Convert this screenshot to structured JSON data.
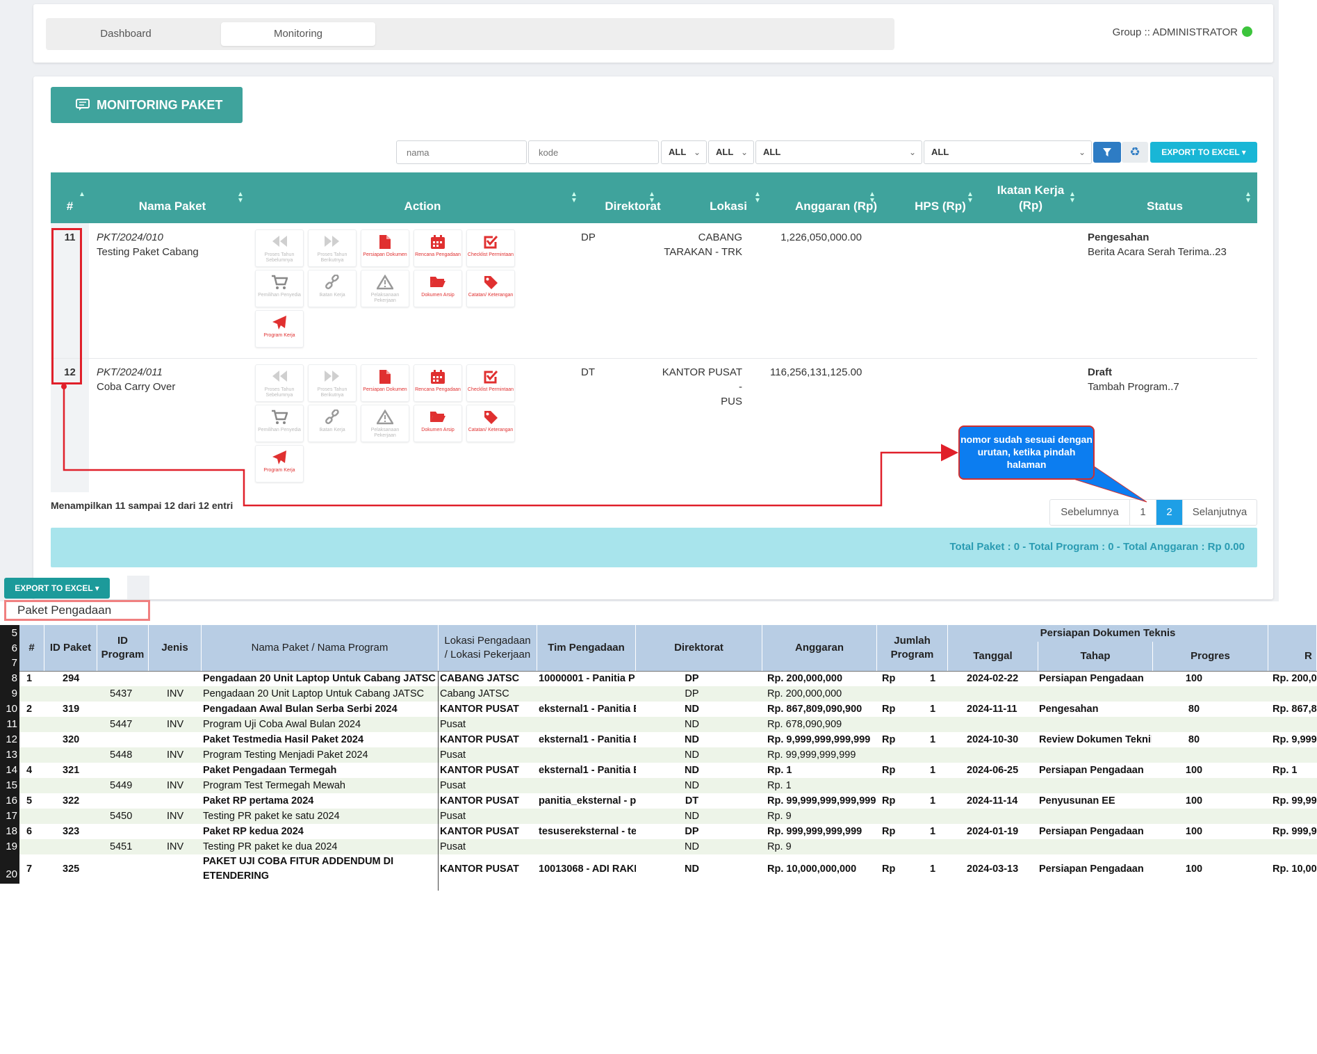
{
  "nav": {
    "tabs": [
      {
        "label": "Dashboard"
      },
      {
        "label": "Monitoring"
      }
    ],
    "group_label": "Group :: ADMINISTRATOR"
  },
  "title": "MONITORING PAKET",
  "filters": {
    "nama_placeholder": "nama",
    "kode_placeholder": "kode",
    "selects": [
      "ALL",
      "ALL",
      "ALL",
      "ALL"
    ],
    "export_label": "EXPORT TO EXCEL"
  },
  "table": {
    "headers": [
      "#",
      "Nama Paket",
      "Action",
      "Direktorat",
      "Lokasi",
      "Anggaran (Rp)",
      "HPS (Rp)",
      "Ikatan Kerja (Rp)",
      "Status"
    ],
    "action_labels": [
      "Proses Tahun Sebelumnya",
      "Proses Tahun Berikutnya",
      "Persiapan Dokumen",
      "Rencana Pengadaan",
      "Checklist Permintaan",
      "Pemilihan Penyedia",
      "Ikatan Kerja",
      "Pelaksanaan Pekerjaan",
      "Dokumen Arsip",
      "Catatan/ Keterangan",
      "Program Kerja"
    ],
    "rows": [
      {
        "no": "11",
        "kode": "PKT/2024/010",
        "nama": "Testing Paket Cabang",
        "direktorat": "DP",
        "lokasi1": "CABANG",
        "lokasi2": "TARAKAN - TRK",
        "anggaran": "1,226,050,000.00",
        "status": "Pengesahan",
        "status_detail": "Berita Acara Serah Terima..23"
      },
      {
        "no": "12",
        "kode": "PKT/2024/011",
        "nama": "Coba Carry Over",
        "direktorat": "DT",
        "lokasi1": "KANTOR PUSAT -",
        "lokasi2": "PUS",
        "anggaran": "116,256,131,125.00",
        "status": "Draft",
        "status_detail": "Tambah Program..7"
      }
    ]
  },
  "entries_text": "Menampilkan 11 sampai 12 dari 12 entri",
  "pagination": {
    "prev": "Sebelumnya",
    "pages": [
      "1",
      "2"
    ],
    "active": "2",
    "next": "Selanjutnya"
  },
  "totals_text": "Total Paket : 0 - Total Program : 0 - Total Anggaran : Rp 0.00",
  "callout_text": "nomor sudah sesuai dengan urutan, ketika pindah halaman",
  "sheet": {
    "export_label": "EXPORT TO EXCEL",
    "title": "Paket Pengadaan",
    "row_numbers": [
      "5",
      "6",
      "7",
      "8",
      "9",
      "10",
      "11",
      "12",
      "13",
      "14",
      "15",
      "16",
      "17",
      "18",
      "19",
      "20"
    ],
    "headers": {
      "no": "#",
      "id_paket": "ID Paket",
      "id_program": "ID Program",
      "jenis": "Jenis",
      "nama": "Nama Paket / Nama Program",
      "lokasi": "Lokasi Pengadaan / Lokasi Pekerjaan",
      "tim": "Tim Pengadaan",
      "direktorat": "Direktorat",
      "anggaran": "Anggaran",
      "jumlah": "Jumlah Program",
      "group": "Persiapan Dokumen Teknis",
      "tanggal": "Tanggal",
      "tahap": "Tahap",
      "progres": "Progres"
    },
    "rows": [
      {
        "rn": "8",
        "bold": true,
        "no": "1",
        "idp": "294",
        "idpr": "",
        "jenis": "",
        "nama": "Pengadaan 20 Unit Laptop Untuk Cabang JATSC",
        "lokasi": "CABANG JATSC",
        "tim": "10000001 - Panitia P",
        "dir": "DP",
        "ang": "Rp. 200,000,000",
        "rp": "Rp",
        "jml": "1",
        "tgl": "2024-02-22",
        "tahap": "Persiapan Pengadaan",
        "prog": "100",
        "last": "Rp. 200,0"
      },
      {
        "rn": "9",
        "bold": false,
        "no": "",
        "idp": "",
        "idpr": "5437",
        "jenis": "INV",
        "nama": "Pengadaan 20 Unit Laptop Untuk Cabang JATSC",
        "lokasi": "Cabang JATSC",
        "tim": "",
        "dir": "DP",
        "ang": "Rp. 200,000,000",
        "rp": "",
        "jml": "",
        "tgl": "",
        "tahap": "",
        "prog": "",
        "last": ""
      },
      {
        "rn": "10",
        "bold": true,
        "no": "2",
        "idp": "319",
        "idpr": "",
        "jenis": "",
        "nama": "Pengadaan Awal Bulan Serba Serbi 2024",
        "lokasi": "KANTOR PUSAT",
        "tim": "eksternal1 - Panitia E",
        "dir": "ND",
        "ang": "Rp. 867,809,090,900",
        "rp": "Rp",
        "jml": "1",
        "tgl": "2024-11-11",
        "tahap": "Pengesahan",
        "prog": "80",
        "last": "Rp. 867,8"
      },
      {
        "rn": "11",
        "bold": false,
        "no": "",
        "idp": "",
        "idpr": "5447",
        "jenis": "INV",
        "nama": "Program Uji Coba Awal Bulan 2024",
        "lokasi": "Pusat",
        "tim": "",
        "dir": "ND",
        "ang": "Rp. 678,090,909",
        "rp": "",
        "jml": "",
        "tgl": "",
        "tahap": "",
        "prog": "",
        "last": ""
      },
      {
        "rn": "12",
        "bold": true,
        "no": "",
        "idp": "320",
        "idpr": "",
        "jenis": "",
        "nama": "Paket Testmedia Hasil Paket 2024",
        "lokasi": "KANTOR PUSAT",
        "tim": "eksternal1 - Panitia E",
        "dir": "ND",
        "ang": "Rp. 9,999,999,999,999",
        "rp": "Rp",
        "jml": "1",
        "tgl": "2024-10-30",
        "tahap": "Review Dokumen Teknil",
        "prog": "80",
        "last": "Rp. 9,999"
      },
      {
        "rn": "13",
        "bold": false,
        "no": "",
        "idp": "",
        "idpr": "5448",
        "jenis": "INV",
        "nama": "Program Testing Menjadi Paket 2024",
        "lokasi": "Pusat",
        "tim": "",
        "dir": "ND",
        "ang": "Rp. 99,999,999,999",
        "rp": "",
        "jml": "",
        "tgl": "",
        "tahap": "",
        "prog": "",
        "last": ""
      },
      {
        "rn": "14",
        "bold": true,
        "no": "4",
        "idp": "321",
        "idpr": "",
        "jenis": "",
        "nama": "Paket Pengadaan Termegah",
        "lokasi": "KANTOR PUSAT",
        "tim": "eksternal1 - Panitia E",
        "dir": "ND",
        "ang": "Rp. 1",
        "rp": "Rp",
        "jml": "1",
        "tgl": "2024-06-25",
        "tahap": "Persiapan Pengadaan",
        "prog": "100",
        "last": "Rp. 1"
      },
      {
        "rn": "15",
        "bold": false,
        "no": "",
        "idp": "",
        "idpr": "5449",
        "jenis": "INV",
        "nama": "Program Test Termegah Mewah",
        "lokasi": "Pusat",
        "tim": "",
        "dir": "ND",
        "ang": "Rp. 1",
        "rp": "",
        "jml": "",
        "tgl": "",
        "tahap": "",
        "prog": "",
        "last": ""
      },
      {
        "rn": "16",
        "bold": true,
        "no": "5",
        "idp": "322",
        "idpr": "",
        "jenis": "",
        "nama": "Paket RP pertama 2024",
        "lokasi": "KANTOR PUSAT",
        "tim": "panitia_eksternal - p",
        "dir": "DT",
        "ang": "Rp. 99,999,999,999,999",
        "rp": "Rp",
        "jml": "1",
        "tgl": "2024-11-14",
        "tahap": "Penyusunan EE",
        "prog": "100",
        "last": "Rp. 99,99"
      },
      {
        "rn": "17",
        "bold": false,
        "no": "",
        "idp": "",
        "idpr": "5450",
        "jenis": "INV",
        "nama": "Testing PR paket ke satu 2024",
        "lokasi": "Pusat",
        "tim": "",
        "dir": "ND",
        "ang": "Rp. 9",
        "rp": "",
        "jml": "",
        "tgl": "",
        "tahap": "",
        "prog": "",
        "last": ""
      },
      {
        "rn": "18",
        "bold": true,
        "no": "6",
        "idp": "323",
        "idpr": "",
        "jenis": "",
        "nama": "Paket RP kedua 2024",
        "lokasi": "KANTOR PUSAT",
        "tim": "tesusereksternal - te",
        "dir": "DP",
        "ang": "Rp. 999,999,999,999",
        "rp": "Rp",
        "jml": "1",
        "tgl": "2024-01-19",
        "tahap": "Persiapan Pengadaan",
        "prog": "100",
        "last": "Rp. 999,9"
      },
      {
        "rn": "19",
        "bold": false,
        "no": "",
        "idp": "",
        "idpr": "5451",
        "jenis": "INV",
        "nama": "Testing PR paket ke dua 2024",
        "lokasi": "Pusat",
        "tim": "",
        "dir": "ND",
        "ang": "Rp. 9",
        "rp": "",
        "jml": "",
        "tgl": "",
        "tahap": "",
        "prog": "",
        "last": ""
      }
    ],
    "last_row": {
      "rn": "20",
      "no": "7",
      "idp": "325",
      "nama1": "PAKET UJI COBA FITUR ADDENDUM DI",
      "nama2": "ETENDERING",
      "lokasi": "KANTOR PUSAT",
      "tim": "10013068 - ADI RAKH",
      "dir": "ND",
      "ang": "Rp. 10,000,000,000",
      "rp": "Rp",
      "jml": "1",
      "tgl": "2024-03-13",
      "tahap": "Persiapan Pengadaan",
      "prog": "100",
      "last": "Rp. 10,00"
    }
  },
  "colors": {
    "teal": "#3fa39c",
    "highlight": "#e0202a",
    "callout": "#0c7df0",
    "sheet_header": "#b8cde4",
    "alt_row": "#edf4e8"
  }
}
